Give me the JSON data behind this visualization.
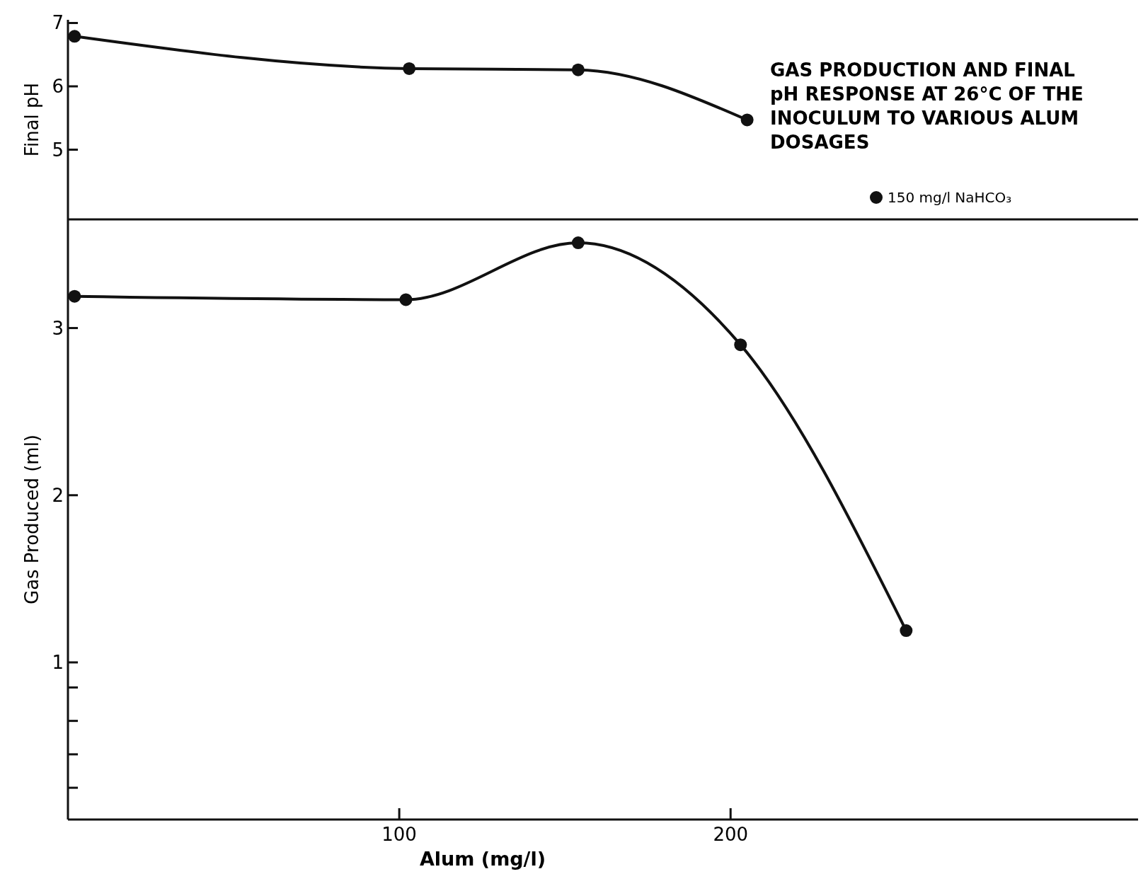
{
  "chart_data": [
    {
      "type": "line",
      "title": "GAS PRODUCTION AND FINAL pH RESPONSE AT 26°C OF THE INOCULUM TO VARIOUS ALUM DOSAGES",
      "ylabel": "Final pH",
      "x": [
        2,
        103,
        154,
        205
      ],
      "xlim": [
        0,
        323
      ],
      "ylim": [
        3.9,
        7.05
      ],
      "yticks": [
        5,
        6,
        7
      ],
      "tick_labels": "y",
      "marker": "circle",
      "legend": "bottom right",
      "grid": false,
      "series": [
        {
          "name": "150 mg/l NaHCO₃",
          "color": "#111111",
          "values": [
            6.79,
            6.28,
            6.26,
            5.47
          ]
        }
      ]
    },
    {
      "type": "line",
      "xlabel": "Alum (mg/l)",
      "ylabel": "Gas Produced (ml)",
      "x": [
        2,
        102,
        154,
        203,
        253
      ],
      "xlim": [
        0,
        323
      ],
      "xticks": [
        100,
        200
      ],
      "ylim": [
        0.06,
        3.65
      ],
      "yticks": [
        {
          "value": 0.25,
          "label": null
        },
        {
          "value": 0.45,
          "label": null
        },
        {
          "value": 0.65,
          "label": null
        },
        {
          "value": 0.85,
          "label": null
        },
        1,
        2,
        3
      ],
      "marker": "circle",
      "grid": false,
      "series": [
        {
          "color": "#111111",
          "values": [
            3.19,
            3.17,
            3.51,
            2.9,
            1.19
          ]
        }
      ]
    }
  ]
}
